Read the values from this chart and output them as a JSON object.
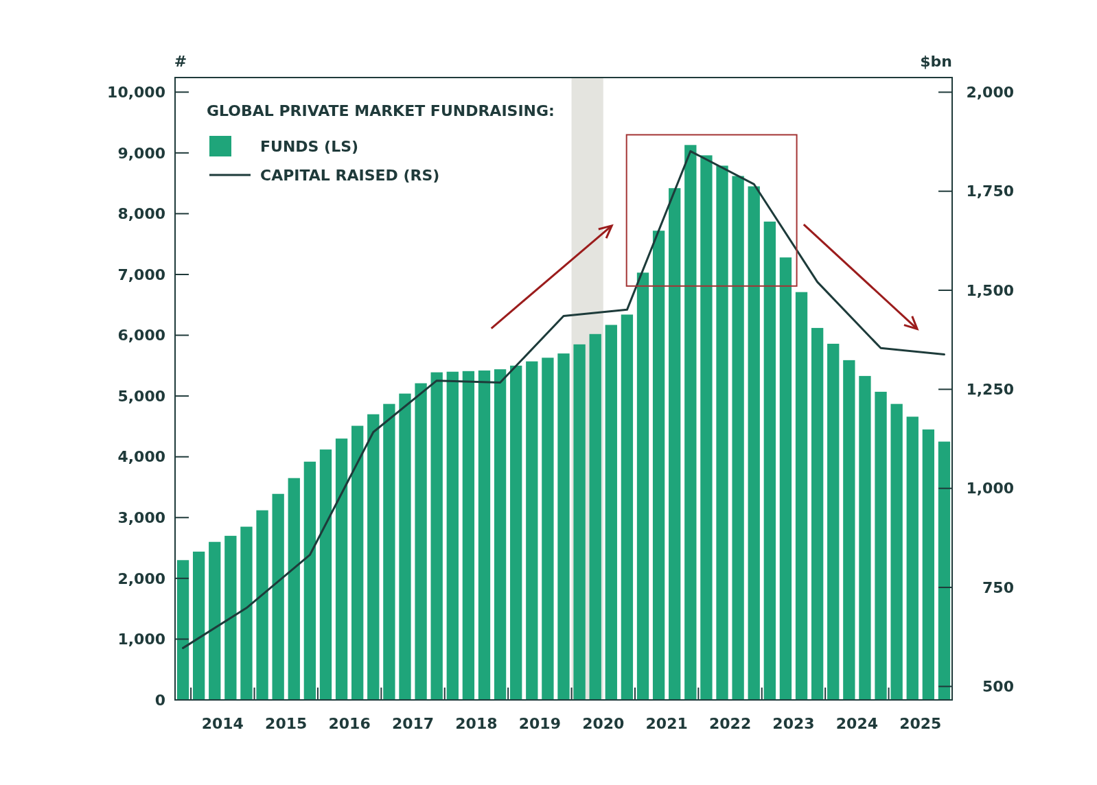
{
  "chart_data": {
    "type": "bar",
    "legend_title": "GLOBAL PRIVATE MARKET FUNDRAISING:",
    "ylabel": "#",
    "y2label": "$bn",
    "legend": "top left",
    "xlim": [
      2013.75,
      2026.0
    ],
    "xticks": [
      {
        "value": 2014.5,
        "label": "2014"
      },
      {
        "value": 2015.5,
        "label": "2015"
      },
      {
        "value": 2016.5,
        "label": "2016"
      },
      {
        "value": 2017.5,
        "label": "2017"
      },
      {
        "value": 2018.5,
        "label": "2018"
      },
      {
        "value": 2019.5,
        "label": "2019"
      },
      {
        "value": 2020.5,
        "label": "2020"
      },
      {
        "value": 2021.5,
        "label": "2021"
      },
      {
        "value": 2022.5,
        "label": "2022"
      },
      {
        "value": 2023.5,
        "label": "2023"
      },
      {
        "value": 2024.5,
        "label": "2024"
      },
      {
        "value": 2025.5,
        "label": "2025"
      }
    ],
    "ylim": [
      0,
      10240
    ],
    "yticks": [
      0,
      {
        "value": 1000,
        "label": "1,000"
      },
      {
        "value": 2000,
        "label": "2,000"
      },
      {
        "value": 3000,
        "label": "3,000"
      },
      {
        "value": 4000,
        "label": "4,000"
      },
      {
        "value": 5000,
        "label": "5,000"
      },
      {
        "value": 6000,
        "label": "6,000"
      },
      {
        "value": 7000,
        "label": "7,000"
      },
      {
        "value": 8000,
        "label": "8,000"
      },
      {
        "value": 9000,
        "label": "9,000"
      },
      {
        "value": 10000,
        "label": "10,000"
      }
    ],
    "y2lim": [
      466,
      2037
    ],
    "y2ticks": [
      500,
      750,
      {
        "value": 1000,
        "label": "1,000"
      },
      {
        "value": 1250,
        "label": "1,250"
      },
      {
        "value": 1500,
        "label": "1,500"
      },
      {
        "value": 1750,
        "label": "1,750"
      },
      {
        "value": 2000,
        "label": "2,000"
      }
    ],
    "bands": [
      {
        "axis": "x",
        "from": 2020.0,
        "to": 2020.5,
        "color": "#e4e4df"
      }
    ],
    "series": [
      {
        "name": "FUNDS (LS)",
        "color": "#1fa57a",
        "x": [
          2013.875,
          2014.125,
          2014.375,
          2014.625,
          2014.875,
          2015.125,
          2015.375,
          2015.625,
          2015.875,
          2016.125,
          2016.375,
          2016.625,
          2016.875,
          2017.125,
          2017.375,
          2017.625,
          2017.875,
          2018.125,
          2018.375,
          2018.625,
          2018.875,
          2019.125,
          2019.375,
          2019.625,
          2019.875,
          2020.125,
          2020.375,
          2020.625,
          2020.875,
          2021.125,
          2021.375,
          2021.625,
          2021.875,
          2022.125,
          2022.375,
          2022.625,
          2022.875,
          2023.125,
          2023.375,
          2023.625,
          2023.875,
          2024.125,
          2024.375,
          2024.625,
          2024.875,
          2025.125,
          2025.375,
          2025.625,
          2025.875
        ],
        "values": [
          2300,
          2440,
          2600,
          2700,
          2850,
          3120,
          3390,
          3650,
          3920,
          4120,
          4300,
          4510,
          4700,
          4870,
          5040,
          5210,
          5390,
          5400,
          5410,
          5420,
          5440,
          5500,
          5570,
          5630,
          5700,
          5850,
          6020,
          6170,
          6340,
          7030,
          7720,
          8420,
          9130,
          8960,
          8790,
          8620,
          8450,
          7870,
          7280,
          6710,
          6120,
          5860,
          5590,
          5330,
          5070,
          4870,
          4660,
          4450,
          4250
        ]
      },
      {
        "name": "CAPITAL RAISED (RS)",
        "type": "line",
        "axis": "y2",
        "color": "#1d3b3a",
        "x": [
          2013.875,
          2014.875,
          2015.875,
          2016.875,
          2017.875,
          2018.875,
          2019.875,
          2020.875,
          2021.875,
          2022.875,
          2023.875,
          2024.875,
          2025.875
        ],
        "values": [
          597,
          698,
          832,
          1142,
          1272,
          1267,
          1435,
          1451,
          1851,
          1768,
          1521,
          1354,
          1338
        ]
      }
    ]
  }
}
